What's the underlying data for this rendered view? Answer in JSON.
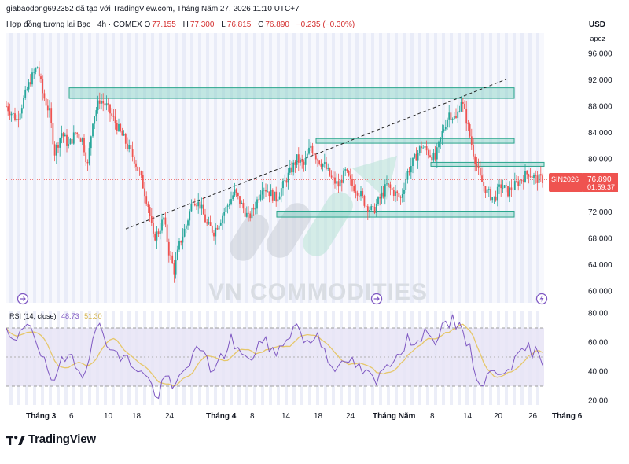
{
  "header": {
    "author_line": "giabaodong692352 đã tạo với TradingView.com, Tháng Năm 27, 2026 11:10 UTC+7",
    "symbol_line": "Hợp đồng tương lai Bạc · 4h · COMEX",
    "ohlc": [
      {
        "label": "O",
        "value": "77.155"
      },
      {
        "label": "H",
        "value": "77.300"
      },
      {
        "label": "L",
        "value": "76.815"
      },
      {
        "label": "C",
        "value": "76.890"
      }
    ],
    "change": "−0.235 (−0.30%)",
    "currency": "USD",
    "apoz": "apoz"
  },
  "price_tag": {
    "symbol": "SIN2026",
    "price": "76.890",
    "countdown": "01:59:37"
  },
  "rsi": {
    "label": "RSI (14, close)",
    "value1": "48.73",
    "value2": "51.30"
  },
  "watermark": "VN COMMODITIES",
  "logo_text": "TradingView",
  "colors": {
    "up": "#26a69a",
    "down": "#ef5350",
    "rsi": "#7e57c2",
    "rsi_ma": "#e6c76a",
    "zone": "#7fd1c1",
    "price_tag": "#ef5350"
  },
  "chart_data": {
    "type": "candlestick",
    "timeframe": "4h",
    "price_axis": {
      "ticks": [
        "96.000",
        "92.000",
        "88.000",
        "84.000",
        "80.000",
        "76.000",
        "72.000",
        "68.000",
        "64.000",
        "60.000"
      ],
      "range": [
        58,
        98
      ]
    },
    "rsi_axis": {
      "ticks": [
        "80.00",
        "60.00",
        "40.00",
        "20.00"
      ],
      "range": [
        15,
        85
      ],
      "band": [
        30,
        70
      ],
      "mid": 50
    },
    "x_axis": {
      "labels": [
        "Tháng 3",
        "6",
        "10",
        "18",
        "24",
        "Tháng 4",
        "8",
        "14",
        "18",
        "24",
        "Tháng Năm",
        "8",
        "14",
        "20",
        "26",
        "Tháng 6"
      ]
    },
    "zones": [
      {
        "from": 89.2,
        "to": 90.8
      },
      {
        "from": 82.4,
        "to": 83.1
      },
      {
        "from": 78.9,
        "to": 79.5
      },
      {
        "from": 71.2,
        "to": 72.1
      }
    ],
    "trendline": {
      "from": 69.4,
      "to": 92.1
    },
    "last_price": 76.89,
    "price_path": [
      [
        0,
        88
      ],
      [
        6,
        86
      ],
      [
        10,
        89
      ],
      [
        14,
        92
      ],
      [
        18,
        94
      ],
      [
        21,
        90
      ],
      [
        25,
        87
      ],
      [
        28,
        81
      ],
      [
        32,
        84
      ],
      [
        36,
        82
      ],
      [
        40,
        84
      ],
      [
        44,
        83
      ],
      [
        47,
        79
      ],
      [
        50,
        86
      ],
      [
        54,
        89
      ],
      [
        58,
        88
      ],
      [
        62,
        86
      ],
      [
        66,
        84
      ],
      [
        70,
        82
      ],
      [
        74,
        80
      ],
      [
        78,
        77
      ],
      [
        82,
        73
      ],
      [
        85,
        68
      ],
      [
        88,
        69
      ],
      [
        91,
        71
      ],
      [
        94,
        66
      ],
      [
        97,
        63
      ],
      [
        100,
        67
      ],
      [
        104,
        70
      ],
      [
        108,
        74
      ],
      [
        112,
        73
      ],
      [
        116,
        70
      ],
      [
        120,
        69
      ],
      [
        124,
        71
      ],
      [
        128,
        73
      ],
      [
        132,
        75
      ],
      [
        136,
        73
      ],
      [
        140,
        71
      ],
      [
        144,
        73
      ],
      [
        148,
        76
      ],
      [
        152,
        75
      ],
      [
        156,
        74
      ],
      [
        160,
        76
      ],
      [
        164,
        78
      ],
      [
        168,
        80
      ],
      [
        172,
        79
      ],
      [
        176,
        82
      ],
      [
        180,
        80
      ],
      [
        184,
        79
      ],
      [
        188,
        77
      ],
      [
        192,
        76
      ],
      [
        196,
        78
      ],
      [
        200,
        76
      ],
      [
        204,
        75
      ],
      [
        208,
        73
      ],
      [
        212,
        72
      ],
      [
        216,
        74
      ],
      [
        220,
        76
      ],
      [
        224,
        75
      ],
      [
        228,
        74
      ],
      [
        232,
        78
      ],
      [
        236,
        80
      ],
      [
        240,
        82
      ],
      [
        244,
        81
      ],
      [
        248,
        80
      ],
      [
        252,
        84
      ],
      [
        256,
        87
      ],
      [
        260,
        86
      ],
      [
        263,
        89
      ],
      [
        266,
        86
      ],
      [
        270,
        81
      ],
      [
        274,
        77
      ],
      [
        278,
        75
      ],
      [
        282,
        74
      ],
      [
        286,
        76
      ],
      [
        290,
        75
      ],
      [
        294,
        76
      ],
      [
        298,
        77
      ],
      [
        302,
        78
      ],
      [
        306,
        77
      ],
      [
        310,
        76.9
      ]
    ],
    "rsi_path": [
      [
        0,
        65
      ],
      [
        6,
        58
      ],
      [
        10,
        72
      ],
      [
        14,
        74
      ],
      [
        18,
        60
      ],
      [
        22,
        45
      ],
      [
        28,
        30
      ],
      [
        32,
        45
      ],
      [
        38,
        52
      ],
      [
        44,
        38
      ],
      [
        50,
        60
      ],
      [
        54,
        72
      ],
      [
        58,
        62
      ],
      [
        64,
        50
      ],
      [
        70,
        48
      ],
      [
        76,
        42
      ],
      [
        82,
        34
      ],
      [
        88,
        22
      ],
      [
        92,
        38
      ],
      [
        96,
        26
      ],
      [
        100,
        35
      ],
      [
        106,
        48
      ],
      [
        112,
        55
      ],
      [
        118,
        42
      ],
      [
        124,
        48
      ],
      [
        130,
        62
      ],
      [
        136,
        52
      ],
      [
        140,
        45
      ],
      [
        146,
        60
      ],
      [
        152,
        58
      ],
      [
        156,
        50
      ],
      [
        162,
        64
      ],
      [
        168,
        72
      ],
      [
        174,
        58
      ],
      [
        180,
        66
      ],
      [
        186,
        50
      ],
      [
        192,
        40
      ],
      [
        198,
        48
      ],
      [
        204,
        42
      ],
      [
        210,
        36
      ],
      [
        214,
        32
      ],
      [
        220,
        45
      ],
      [
        226,
        52
      ],
      [
        232,
        62
      ],
      [
        238,
        56
      ],
      [
        242,
        74
      ],
      [
        246,
        60
      ],
      [
        252,
        68
      ],
      [
        258,
        74
      ],
      [
        264,
        70
      ],
      [
        270,
        46
      ],
      [
        274,
        30
      ],
      [
        278,
        36
      ],
      [
        284,
        40
      ],
      [
        290,
        44
      ],
      [
        296,
        48
      ],
      [
        300,
        56
      ],
      [
        306,
        52
      ],
      [
        310,
        49
      ]
    ]
  }
}
